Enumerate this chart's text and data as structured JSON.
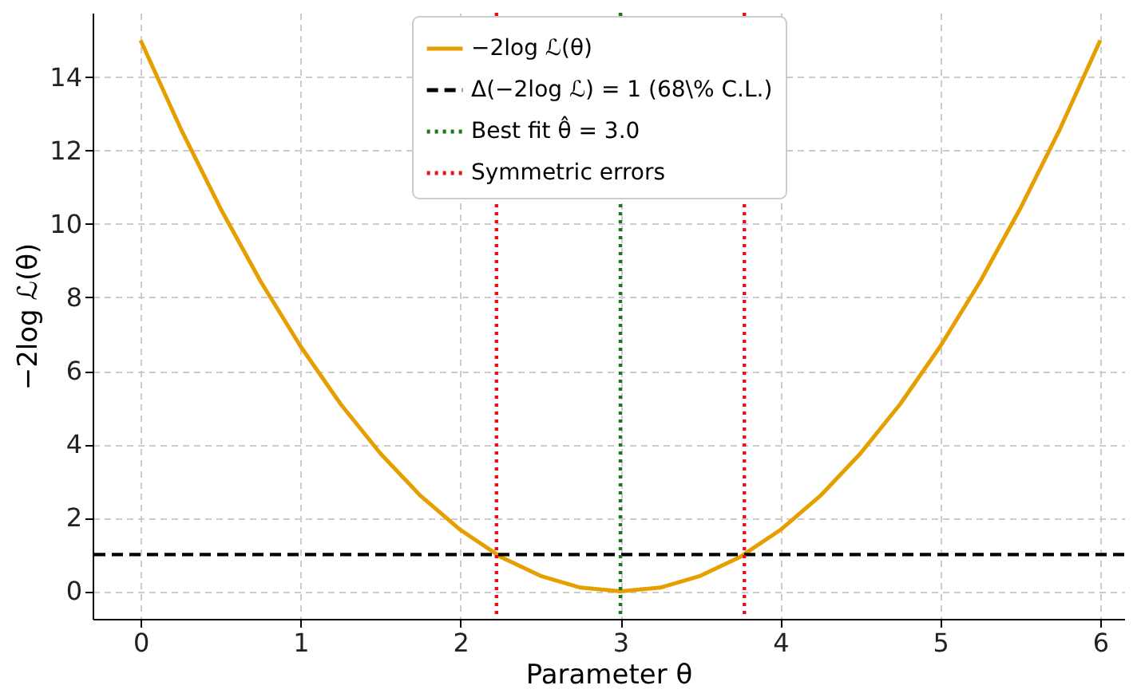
{
  "chart_data": {
    "type": "line",
    "xlabel": "Parameter θ",
    "ylabel": "−2log ℒ(θ)",
    "x": [
      0,
      0.25,
      0.5,
      0.75,
      1,
      1.25,
      1.5,
      1.75,
      2,
      2.25,
      2.5,
      2.75,
      3,
      3.25,
      3.5,
      3.75,
      4,
      4.25,
      4.5,
      4.75,
      5,
      5.25,
      5.5,
      5.75,
      6
    ],
    "series": [
      {
        "name": "−2log ℒ(θ)",
        "color": "#e69f00",
        "values": [
          15,
          12.6,
          10.42,
          8.44,
          6.67,
          5.1,
          3.75,
          2.6,
          1.67,
          0.94,
          0.42,
          0.1,
          0,
          0.1,
          0.42,
          0.94,
          1.67,
          2.6,
          3.75,
          5.1,
          6.67,
          8.44,
          10.42,
          12.6,
          15
        ]
      }
    ],
    "ref_lines": [
      {
        "axis": "y",
        "value": 1,
        "label": "Δ(−2log ℒ) = 1 (68\\% C.L.)",
        "color": "#000000",
        "line_style": "dashed"
      },
      {
        "axis": "x",
        "value": 3,
        "label": "Best fit θ̂ = 3.0",
        "color": "#1a7a1a",
        "line_style": "dotted"
      },
      {
        "axis": "x",
        "value": 2.225,
        "label": "Symmetric errors",
        "color": "#e8121a",
        "line_style": "dotted"
      },
      {
        "axis": "x",
        "value": 3.775,
        "label": null,
        "color": "#e8121a",
        "line_style": "dotted"
      }
    ],
    "xlim": [
      -0.3,
      6.15
    ],
    "ylim": [
      -0.75,
      15.75
    ],
    "xticks": [
      0,
      1,
      2,
      3,
      4,
      5,
      6
    ],
    "yticks": [
      0,
      2,
      4,
      6,
      8,
      10,
      12,
      14
    ],
    "grid": true,
    "legend": "top",
    "line_style": "solid",
    "marker": "none"
  }
}
